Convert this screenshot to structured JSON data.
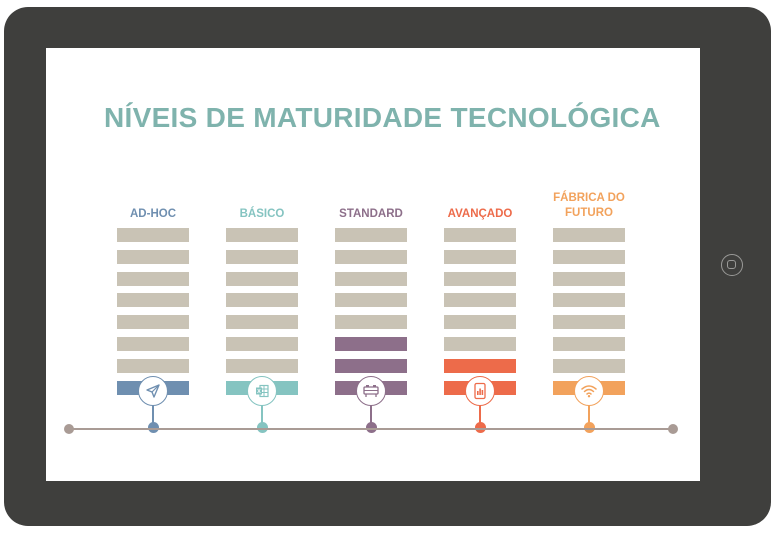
{
  "title": "NÍVEIS DE MATURIDADE TECNOLÓGICA",
  "colors": {
    "frame": "#3f3f3d",
    "title": "#7fb3ad",
    "inactive_bar": "#c9c3b5",
    "timeline": "#a99b95"
  },
  "levels": [
    {
      "label": "AD-HOC",
      "color": "#6f8fb0",
      "filled_bars": 1,
      "icon": "paper-plane-icon"
    },
    {
      "label": "BÁSICO",
      "color": "#85c4c1",
      "filled_bars": 1,
      "icon": "spreadsheet-icon"
    },
    {
      "label": "STANDARD",
      "color": "#8d6f8a",
      "filled_bars": 3,
      "icon": "server-icon"
    },
    {
      "label": "AVANÇADO",
      "color": "#ed6b4a",
      "filled_bars": 2,
      "icon": "tablet-chart-icon"
    },
    {
      "label": "FÁBRICA DO FUTURO",
      "color": "#f2a25c",
      "filled_bars": 1,
      "icon": "wifi-icon"
    }
  ],
  "bars_per_level": 8
}
